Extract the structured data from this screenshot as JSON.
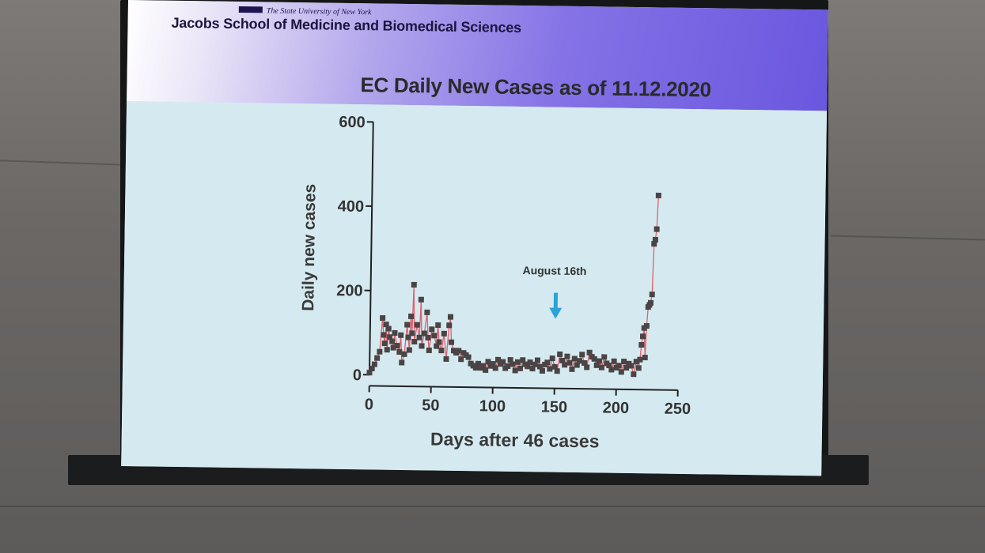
{
  "slide": {
    "university": "The State University of New York",
    "school": "Jacobs School of Medicine and Biomedical Sciences"
  },
  "colors": {
    "header_start": "#ffffff",
    "header_end": "#6a57df",
    "slide_bg": "#d5eaf0",
    "marker": "#4a4444",
    "line": "#e0606e",
    "arrow": "#2aa3d8"
  },
  "chart_data": {
    "type": "line",
    "title": "EC Daily New Cases as of 11.12.2020",
    "xlabel": "Days after 46 cases",
    "ylabel": "Daily new cases",
    "xlim": [
      0,
      250
    ],
    "ylim": [
      0,
      600
    ],
    "xticks": [
      0,
      50,
      100,
      150,
      200,
      250
    ],
    "yticks": [
      0,
      200,
      400,
      600
    ],
    "grid": false,
    "legend": "none",
    "markers": "square",
    "series": [
      {
        "x": [
          0,
          2,
          4,
          6,
          8,
          10,
          11,
          12,
          13,
          14,
          15,
          16,
          18,
          19,
          20,
          22,
          24,
          25,
          26,
          28,
          30,
          31,
          32,
          33,
          34,
          35,
          36,
          38,
          40,
          41,
          42,
          44,
          46,
          47,
          48,
          50,
          52,
          54,
          55,
          56,
          58,
          60,
          62,
          64,
          65,
          66,
          68,
          70,
          72,
          74,
          76,
          78,
          80,
          82,
          84,
          86,
          88,
          90,
          92,
          94,
          96,
          98,
          100,
          102,
          104,
          106,
          108,
          110,
          112,
          114,
          116,
          118,
          120,
          122,
          124,
          126,
          128,
          130,
          132,
          134,
          136,
          138,
          140,
          142,
          144,
          146,
          148,
          150,
          152,
          154,
          156,
          158,
          160,
          162,
          164,
          166,
          168,
          170,
          172,
          174,
          176,
          178,
          180,
          182,
          184,
          186,
          188,
          190,
          192,
          194,
          196,
          198,
          200,
          202,
          204,
          206,
          208,
          210,
          212,
          214,
          216,
          218,
          219,
          220,
          221,
          222,
          223,
          224,
          225,
          226,
          227,
          228,
          229,
          230,
          231,
          232
        ],
        "y": [
          5,
          15,
          25,
          40,
          55,
          135,
          95,
          75,
          120,
          60,
          110,
          90,
          80,
          65,
          100,
          70,
          55,
          95,
          30,
          50,
          120,
          90,
          60,
          140,
          100,
          215,
          80,
          120,
          90,
          180,
          70,
          100,
          150,
          90,
          60,
          110,
          95,
          70,
          120,
          80,
          60,
          100,
          40,
          120,
          140,
          80,
          60,
          55,
          60,
          40,
          55,
          50,
          45,
          30,
          25,
          20,
          30,
          20,
          25,
          15,
          35,
          25,
          30,
          20,
          40,
          30,
          35,
          20,
          25,
          40,
          30,
          15,
          35,
          20,
          40,
          30,
          25,
          35,
          20,
          30,
          40,
          25,
          15,
          30,
          35,
          20,
          45,
          25,
          15,
          55,
          40,
          30,
          50,
          35,
          20,
          45,
          30,
          40,
          55,
          35,
          25,
          60,
          50,
          45,
          30,
          40,
          25,
          50,
          35,
          30,
          20,
          40,
          25,
          30,
          15,
          40,
          25,
          35,
          30,
          10,
          40,
          25,
          45,
          80,
          100,
          120,
          50,
          125,
          170,
          175,
          180,
          200,
          320,
          330,
          355,
          435
        ]
      }
    ],
    "annotations": [
      {
        "text": "August 16th",
        "x": 150
      }
    ]
  }
}
